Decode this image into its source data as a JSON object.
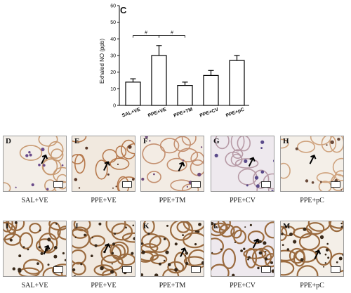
{
  "chart_data": {
    "type": "bar",
    "panel_label": "C",
    "ylabel": "Exhaled NO (ppb)",
    "xlabel": "",
    "ylim": [
      0,
      60
    ],
    "yticks": [
      "0",
      "10",
      "20",
      "30",
      "40",
      "50",
      "60"
    ],
    "categories": [
      "SAL+VE",
      "PPE+VE",
      "PPE+TM",
      "PPE+CV",
      "PPE+pC"
    ],
    "values": [
      14,
      30,
      12,
      18,
      27
    ],
    "errors": [
      2,
      6,
      2,
      3,
      3
    ],
    "significance": [
      {
        "from": "SAL+VE",
        "to": "PPE+VE",
        "label": "#"
      },
      {
        "from": "PPE+VE",
        "to": "PPE+TM",
        "label": "#"
      }
    ],
    "bar_color": "#ffffff",
    "edge_color": "#000000"
  },
  "row1": {
    "panels": [
      {
        "letter": "D",
        "caption": "SAL+VE"
      },
      {
        "letter": "E",
        "caption": "PPE+VE"
      },
      {
        "letter": "F",
        "caption": "PPE+TM"
      },
      {
        "letter": "G",
        "caption": "PPE+CV"
      },
      {
        "letter": "H",
        "caption": "PPE+pC"
      }
    ]
  },
  "row2": {
    "panels": [
      {
        "letter": "I",
        "caption": "SAL+VE"
      },
      {
        "letter": "J",
        "caption": "PPE+VE"
      },
      {
        "letter": "K",
        "caption": "PPE+TM"
      },
      {
        "letter": "L",
        "caption": "PPE+CV"
      },
      {
        "letter": "M",
        "caption": "PPE+pC"
      }
    ]
  }
}
